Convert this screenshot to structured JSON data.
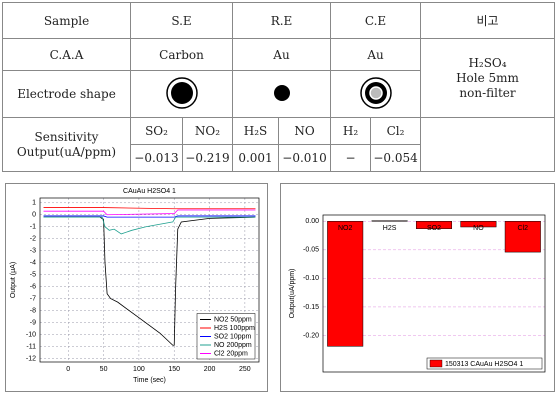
{
  "table": {
    "header": [
      "Sample",
      "S.E",
      "R.E",
      "C.E",
      "비고"
    ],
    "caa": [
      "C.A.A",
      "Carbon",
      "Au",
      "Au"
    ],
    "note": [
      "H₂SO₄",
      "Hole 5mm",
      "non-filter"
    ],
    "electrode_label": "Electrode shape",
    "sensitivity_label": [
      "Sensitivity",
      "Output(uA/ppm)"
    ],
    "gases": [
      "SO₂",
      "NO₂",
      "H₂S",
      "NO",
      "H₂",
      "Cl₂"
    ],
    "sensitivities": [
      "−0.013",
      "−0.219",
      "0.001",
      "−0.010",
      "−",
      "−0.054"
    ]
  },
  "chart_data": [
    {
      "type": "line",
      "title": "CAuAu H2SO4 1",
      "x_label": "Time (sec)",
      "y_label": "Output (μA)",
      "xlim": [
        -40,
        270
      ],
      "xticks": [
        0,
        50,
        100,
        150,
        200,
        250
      ],
      "ylim": [
        -12.3,
        1.4
      ],
      "yticks": [
        1,
        0,
        -1,
        -2,
        -3,
        -4,
        -5,
        -6,
        -7,
        -8,
        -9,
        -10,
        -11,
        -12
      ],
      "grid": true,
      "legend": "lower right",
      "series": [
        {
          "name": "NO2 50ppm",
          "color": "#000000",
          "x": [
            -35,
            45,
            50,
            52,
            55,
            60,
            70,
            100,
            130,
            148,
            150,
            152,
            155,
            160,
            200,
            265
          ],
          "values": [
            -0.2,
            -0.2,
            -0.4,
            -4,
            -6.6,
            -7.0,
            -7.3,
            -8.6,
            -9.9,
            -10.9,
            -10.9,
            -6,
            -1.2,
            -0.6,
            -0.3,
            -0.2
          ]
        },
        {
          "name": "H2S 100ppm",
          "color": "#ff0000",
          "x": [
            -35,
            50,
            150,
            265
          ],
          "values": [
            0.6,
            0.6,
            0.5,
            0.5
          ]
        },
        {
          "name": "SO2 10ppm",
          "color": "#0000ff",
          "x": [
            -35,
            50,
            55,
            150,
            155,
            265
          ],
          "values": [
            -0.1,
            -0.1,
            -0.2,
            -0.2,
            -0.1,
            -0.1
          ]
        },
        {
          "name": "NO 200ppm",
          "color": "#20a090",
          "x": [
            -35,
            48,
            52,
            58,
            65,
            75,
            90,
            110,
            148,
            152,
            160,
            265
          ],
          "values": [
            -0.2,
            -0.2,
            -1.0,
            -1.3,
            -1.2,
            -1.6,
            -1.3,
            -1.0,
            -0.6,
            -0.2,
            -0.2,
            -0.2
          ]
        },
        {
          "name": "Cl2 20ppm",
          "color": "#ff00ff",
          "x": [
            -35,
            50,
            55,
            150,
            155,
            265
          ],
          "values": [
            0.3,
            0.3,
            0.0,
            0.1,
            0.4,
            0.4
          ]
        }
      ]
    },
    {
      "type": "bar",
      "y_label": "Output(uA/ppm)",
      "categories": [
        "NO2",
        "H2S",
        "SO2",
        "NO",
        "Cl2"
      ],
      "ylim": [
        -0.264,
        0.011
      ],
      "yticks": [
        {
          "value": 0,
          "label": "0.00"
        },
        {
          "value": -0.05,
          "label": "-0.05"
        },
        {
          "value": -0.1,
          "label": "-0.10"
        },
        {
          "value": -0.15,
          "label": "-0.15"
        },
        {
          "value": -0.2,
          "label": "-0.20"
        }
      ],
      "grid": true,
      "legend": "lower right",
      "series": [
        {
          "name": "150313 CAuAu H2SO4 1",
          "color": "#ff0000",
          "values": [
            -0.219,
            0.001,
            -0.013,
            -0.01,
            -0.054
          ]
        }
      ]
    }
  ]
}
